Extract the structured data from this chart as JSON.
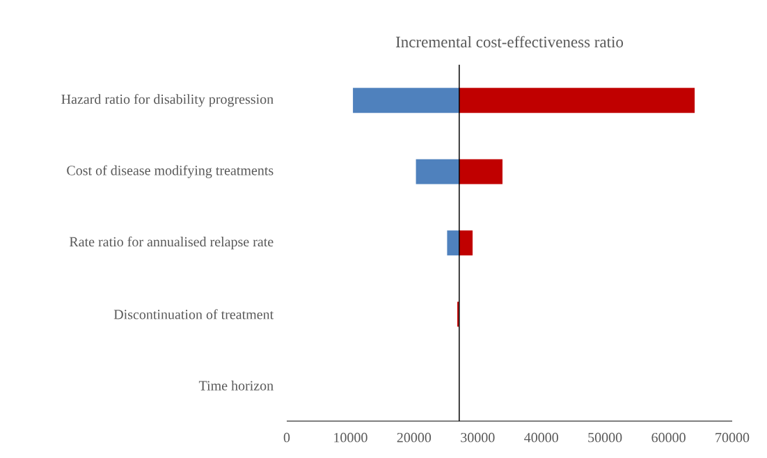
{
  "chart_data": {
    "type": "bar",
    "orientation": "horizontal",
    "title": "Incremental cost-effectiveness ratio",
    "categories": [
      "Hazard ratio for disability progression",
      "Cost of disease modifying treatments",
      "Rate ratio for annualised relapse rate",
      "Discontinuation of treatment",
      "Time horizon"
    ],
    "xlim": [
      0,
      70000
    ],
    "xticks": [
      0,
      10000,
      20000,
      30000,
      40000,
      50000,
      60000,
      70000
    ],
    "ref_lines": [
      {
        "axis": "x",
        "value": 27100,
        "color": "#000000"
      }
    ],
    "series": [
      {
        "color": "#4f81bd",
        "base": [
          10400,
          20300,
          25200,
          null,
          null
        ],
        "values": [
          16700,
          6800,
          1900,
          null,
          null
        ]
      },
      {
        "color": "#c00000",
        "base": [
          27100,
          27100,
          27100,
          26800,
          null
        ],
        "values": [
          37000,
          6800,
          2100,
          300,
          null
        ]
      }
    ]
  }
}
